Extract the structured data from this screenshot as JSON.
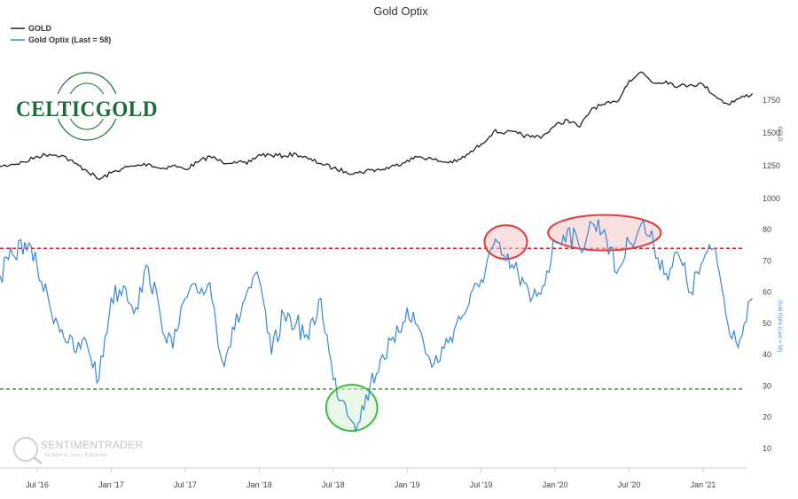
{
  "chart_data": {
    "type": "line",
    "title": "Gold Optix",
    "legend": {
      "placement": "top-left",
      "entries": [
        {
          "label": "GOLD",
          "color": "#222222"
        },
        {
          "label": "Gold Optix (Last = 58)",
          "color": "#3a87d0"
        }
      ]
    },
    "x_ticks": [
      "Jul '16",
      "Jan '17",
      "Jul '17",
      "Jan '18",
      "Jul '18",
      "Jan '19",
      "Jul '19",
      "Jan '20",
      "Jul '20",
      "Jan '21"
    ],
    "x_range": [
      "2016-03",
      "2021-06"
    ],
    "gold_axis": {
      "label": "GOLD",
      "ticks": [
        "1000",
        "1250",
        "1500",
        "1750"
      ],
      "range": [
        1000,
        1750
      ]
    },
    "optix_axis": {
      "label": "Gold Optix (Last = 58)",
      "ticks": [
        "10",
        "20",
        "30",
        "40",
        "50",
        "60",
        "70",
        "80"
      ],
      "range": [
        10,
        80
      ]
    },
    "reference_lines": [
      {
        "value": 74,
        "color": "#cc0000",
        "style": "dashed"
      },
      {
        "value": 29,
        "color": "#2a8a2a",
        "style": "dashed"
      }
    ],
    "series": [
      {
        "name": "GOLD",
        "color": "#222222",
        "x": [
          "2016-03",
          "2016-04",
          "2016-05",
          "2016-06",
          "2016-07",
          "2016-08",
          "2016-09",
          "2016-10",
          "2016-11",
          "2016-12",
          "2017-01",
          "2017-02",
          "2017-03",
          "2017-04",
          "2017-05",
          "2017-06",
          "2017-07",
          "2017-08",
          "2017-09",
          "2017-10",
          "2017-11",
          "2017-12",
          "2018-01",
          "2018-02",
          "2018-03",
          "2018-04",
          "2018-05",
          "2018-06",
          "2018-07",
          "2018-08",
          "2018-09",
          "2018-10",
          "2018-11",
          "2018-12",
          "2019-01",
          "2019-02",
          "2019-03",
          "2019-04",
          "2019-05",
          "2019-06",
          "2019-07",
          "2019-08",
          "2019-09",
          "2019-10",
          "2019-11",
          "2019-12",
          "2020-01",
          "2020-02",
          "2020-03",
          "2020-04",
          "2020-05",
          "2020-06",
          "2020-07",
          "2020-08",
          "2020-09",
          "2020-10",
          "2020-11",
          "2020-12",
          "2021-01",
          "2021-02",
          "2021-03",
          "2021-04",
          "2021-05"
        ],
        "values": [
          1235,
          1245,
          1262,
          1278,
          1322,
          1338,
          1330,
          1270,
          1215,
          1145,
          1195,
          1232,
          1248,
          1265,
          1228,
          1252,
          1222,
          1275,
          1322,
          1278,
          1282,
          1262,
          1335,
          1330,
          1325,
          1340,
          1300,
          1268,
          1232,
          1205,
          1195,
          1218,
          1222,
          1250,
          1292,
          1320,
          1300,
          1278,
          1282,
          1340,
          1415,
          1510,
          1505,
          1495,
          1468,
          1478,
          1555,
          1600,
          1545,
          1690,
          1715,
          1735,
          1900,
          1965,
          1880,
          1895,
          1855,
          1870,
          1870,
          1780,
          1720,
          1765,
          1800
        ]
      },
      {
        "name": "Gold Optix (Last = 58)",
        "color": "#3a87d0",
        "x": [
          "2016-03",
          "2016-04",
          "2016-05",
          "2016-06",
          "2016-07",
          "2016-08",
          "2016-09",
          "2016-10",
          "2016-11",
          "2016-12",
          "2017-01",
          "2017-02",
          "2017-03",
          "2017-04",
          "2017-05",
          "2017-06",
          "2017-07",
          "2017-08",
          "2017-09",
          "2017-10",
          "2017-11",
          "2017-12",
          "2018-01",
          "2018-02",
          "2018-03",
          "2018-04",
          "2018-05",
          "2018-06",
          "2018-07",
          "2018-08",
          "2018-09",
          "2018-10",
          "2018-11",
          "2018-12",
          "2019-01",
          "2019-02",
          "2019-03",
          "2019-04",
          "2019-05",
          "2019-06",
          "2019-07",
          "2019-08",
          "2019-09",
          "2019-10",
          "2019-11",
          "2019-12",
          "2020-01",
          "2020-02",
          "2020-03",
          "2020-04",
          "2020-05",
          "2020-06",
          "2020-07",
          "2020-08",
          "2020-09",
          "2020-10",
          "2020-11",
          "2020-12",
          "2021-01",
          "2021-02",
          "2021-03",
          "2021-04",
          "2021-05"
        ],
        "values": [
          60,
          65,
          72,
          76,
          68,
          56,
          48,
          41,
          44,
          32,
          58,
          62,
          55,
          68,
          52,
          42,
          58,
          60,
          63,
          38,
          48,
          60,
          64,
          40,
          53,
          50,
          45,
          58,
          32,
          24,
          18,
          30,
          40,
          44,
          55,
          48,
          36,
          42,
          50,
          56,
          64,
          75,
          70,
          66,
          57,
          62,
          76,
          80,
          74,
          82,
          80,
          66,
          76,
          82,
          75,
          66,
          72,
          60,
          70,
          74,
          50,
          45,
          58
        ]
      }
    ],
    "annotations": [
      {
        "shape": "ellipse",
        "color": "#e03c3c",
        "fill": "#f4c9c9",
        "around": [
          "2019-08",
          "2019-10"
        ]
      },
      {
        "shape": "ellipse",
        "color": "#e03c3c",
        "fill": "#f4c9c9",
        "around": [
          "2020-01",
          "2020-09"
        ]
      },
      {
        "shape": "ellipse",
        "color": "#3cbc3c",
        "fill": "#d8f2d8",
        "around": [
          "2018-07",
          "2018-10"
        ]
      }
    ],
    "grid": false
  },
  "logo": {
    "text": "CELTICGOLD"
  },
  "watermark": {
    "title": "SENTIMENTRADER",
    "subtitle": "Analysis over Emotion"
  },
  "colors": {
    "gold_line": "#222222",
    "optix_line": "#3a87d0",
    "upper_threshold": "#cc0000",
    "lower_threshold": "#2a8a2a",
    "logo_green": "#1d6b3a"
  }
}
